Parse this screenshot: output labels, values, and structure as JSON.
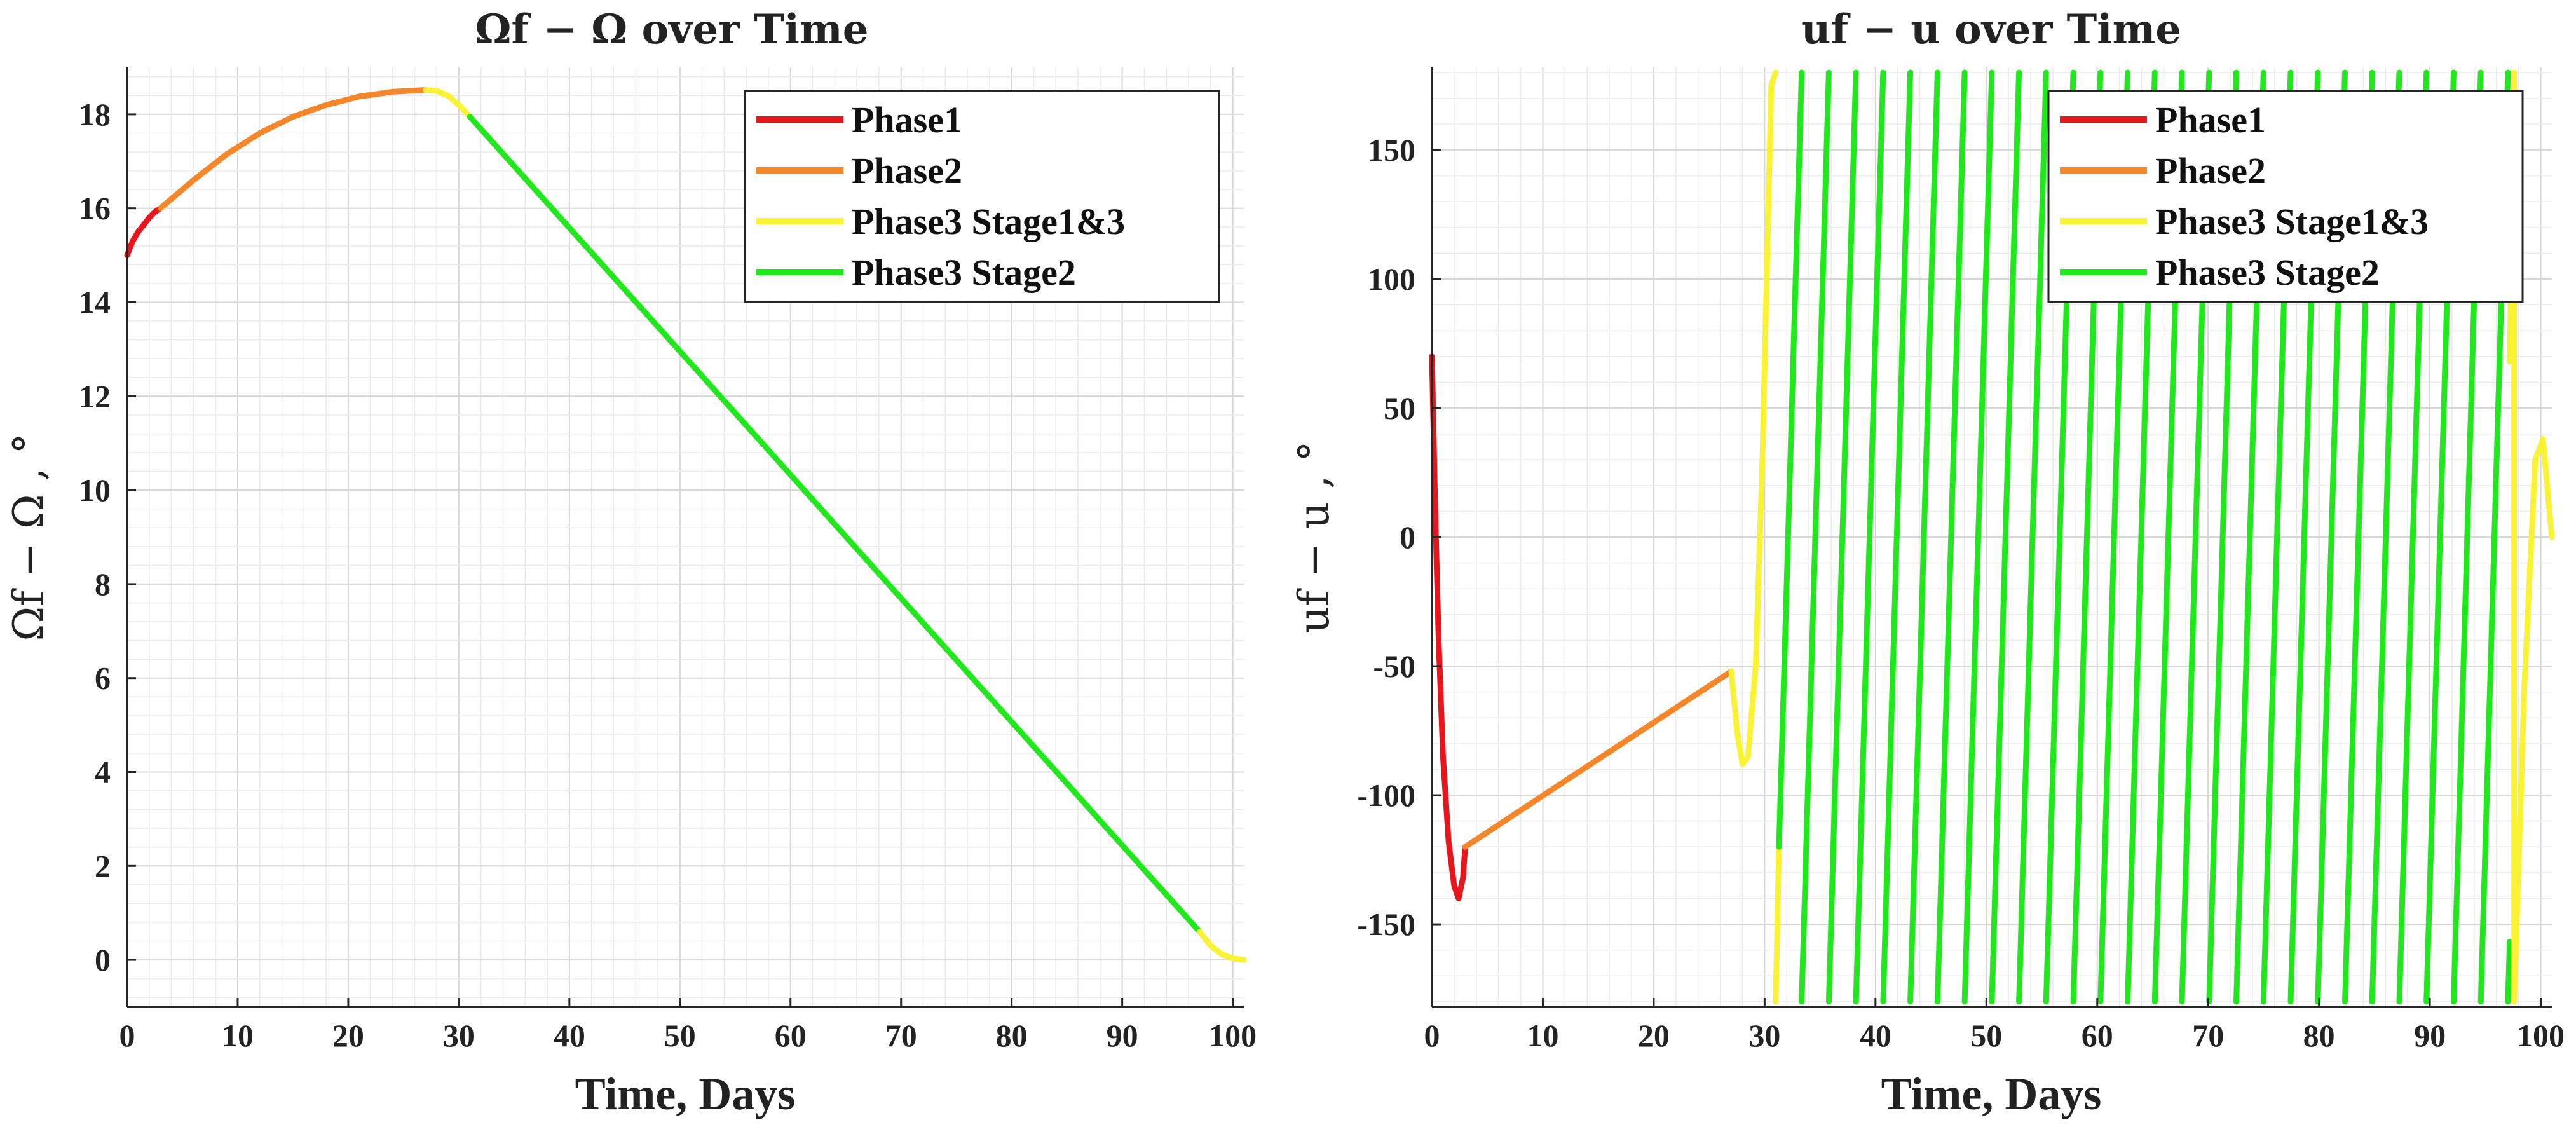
{
  "chart_data": [
    {
      "type": "line",
      "title": "Ωf − Ω over Time",
      "xlabel": "Time, Days",
      "ylabel": "Ωf − Ω , °",
      "xlim": [
        0,
        101
      ],
      "ylim": [
        -1,
        19
      ],
      "xticks": [
        0,
        10,
        20,
        30,
        40,
        50,
        60,
        70,
        80,
        90,
        100
      ],
      "yticks": [
        0,
        2,
        4,
        6,
        8,
        10,
        12,
        14,
        16,
        18
      ],
      "ytick_labels": [
        "0",
        "2",
        "4",
        "6",
        "8",
        "10",
        "12",
        "14",
        "16",
        "18"
      ],
      "grid": true,
      "legend_position": "top-right",
      "legend": [
        {
          "label": "Phase1",
          "color": "#e8161c"
        },
        {
          "label": "Phase2",
          "color": "#f5862a"
        },
        {
          "label": "Phase3  Stage1&3",
          "color": "#f9f235"
        },
        {
          "label": "Phase3  Stage2",
          "color": "#20e81c"
        }
      ],
      "series": [
        {
          "name": "Phase1",
          "color": "#e8161c",
          "x": [
            0,
            0.5,
            1,
            1.5,
            2,
            2.5,
            3
          ],
          "y": [
            15.0,
            15.3,
            15.5,
            15.65,
            15.8,
            15.92,
            16.0
          ]
        },
        {
          "name": "Phase2",
          "color": "#f5862a",
          "x": [
            3,
            6,
            9,
            12,
            15,
            18,
            21,
            24,
            27
          ],
          "y": [
            16.0,
            16.6,
            17.15,
            17.6,
            17.95,
            18.2,
            18.38,
            18.48,
            18.52
          ]
        },
        {
          "name": "Phase3  Stage1&3",
          "color": "#f9f235",
          "x": [
            27,
            28,
            29,
            30,
            31
          ],
          "y": [
            18.52,
            18.5,
            18.4,
            18.2,
            17.95
          ]
        },
        {
          "name": "Phase3  Stage2",
          "color": "#20e81c",
          "x": [
            31,
            97
          ],
          "y": [
            17.95,
            0.6
          ]
        },
        {
          "name": "Phase3  Stage1&3 (end)",
          "color": "#f9f235",
          "x": [
            97,
            98,
            99,
            100,
            101
          ],
          "y": [
            0.6,
            0.3,
            0.12,
            0.03,
            0.0
          ]
        }
      ]
    },
    {
      "type": "line",
      "title": "uf − u over Time",
      "xlabel": "Time, Days",
      "ylabel": "uf − u , °",
      "xlim": [
        0,
        101
      ],
      "ylim": [
        -182,
        182
      ],
      "xticks": [
        0,
        10,
        20,
        30,
        40,
        50,
        60,
        70,
        80,
        90,
        100
      ],
      "yticks": [
        -150,
        -100,
        -50,
        0,
        50,
        100,
        150
      ],
      "ytick_labels": [
        "-150",
        "-100",
        "-50",
        "0",
        "50",
        "100",
        "150"
      ],
      "grid": true,
      "legend_position": "top-right",
      "legend": [
        {
          "label": "Phase1",
          "color": "#e8161c"
        },
        {
          "label": "Phase2",
          "color": "#f5862a"
        },
        {
          "label": "Phase3  Stage1&3",
          "color": "#f9f235"
        },
        {
          "label": "Phase3  Stage2",
          "color": "#20e81c"
        }
      ],
      "series": [
        {
          "name": "Phase1",
          "color": "#e8161c",
          "x": [
            0,
            0.3,
            0.6,
            1.0,
            1.5,
            2.0,
            2.4,
            2.8,
            3.0
          ],
          "y": [
            70,
            10,
            -40,
            -85,
            -118,
            -135,
            -140,
            -132,
            -120
          ]
        },
        {
          "name": "Phase2",
          "color": "#f5862a",
          "x": [
            3,
            27
          ],
          "y": [
            -120,
            -52
          ]
        },
        {
          "name": "Phase3  Stage1&3",
          "color": "#f9f235",
          "x": [
            27,
            27.5,
            28,
            28.5,
            29.2,
            29.8,
            30.3,
            30.6,
            31.0
          ],
          "y": [
            -52,
            -75,
            -88,
            -85,
            -50,
            30,
            120,
            175,
            180
          ]
        },
        {
          "name": "Phase3  Stage1&3 (wrap)",
          "color": "#f9f235",
          "x": [
            31.0,
            31.0,
            31.3
          ],
          "y": [
            -180,
            -180,
            -120
          ]
        },
        {
          "name": "Phase3  Stage2",
          "color": "#20e81c",
          "x_start": 31.3,
          "x_end": 97.2,
          "y_start": -120,
          "y_end": 68,
          "period_days": 2.45,
          "wrap_min": -180,
          "wrap_max": 180
        },
        {
          "name": "Phase3  Stage1&3 (end)",
          "color": "#f9f235",
          "x": [
            97.2,
            97.5,
            97.6,
            97.6,
            98.5,
            99.5,
            100.2,
            101
          ],
          "y": [
            68,
            150,
            180,
            -180,
            -60,
            30,
            38,
            0
          ]
        }
      ]
    }
  ]
}
